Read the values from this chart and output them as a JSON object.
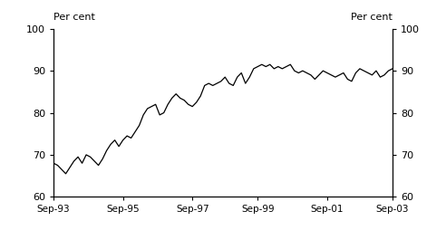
{
  "ylabel_left": "Per cent",
  "ylabel_right": "Per cent",
  "ylim": [
    60,
    100
  ],
  "yticks": [
    60,
    70,
    80,
    90,
    100
  ],
  "xtick_labels": [
    "Sep-93",
    "Sep-95",
    "Sep-97",
    "Sep-99",
    "Sep-01",
    "Sep-03"
  ],
  "line_color": "#000000",
  "line_width": 0.9,
  "background_color": "#ffffff",
  "values": [
    68.0,
    67.5,
    66.5,
    65.5,
    67.0,
    68.5,
    69.5,
    68.0,
    70.0,
    69.5,
    68.5,
    67.5,
    69.0,
    71.0,
    72.5,
    73.5,
    72.0,
    73.5,
    74.5,
    74.0,
    75.5,
    77.0,
    79.5,
    81.0,
    81.5,
    82.0,
    79.5,
    80.0,
    82.0,
    83.5,
    84.5,
    83.5,
    83.0,
    82.0,
    81.5,
    82.5,
    84.0,
    86.5,
    87.0,
    86.5,
    87.0,
    87.5,
    88.5,
    87.0,
    86.5,
    88.5,
    89.5,
    87.0,
    88.5,
    90.5,
    91.0,
    91.5,
    91.0,
    91.5,
    90.5,
    91.0,
    90.5,
    91.0,
    91.5,
    90.0,
    89.5,
    90.0,
    89.5,
    89.0,
    88.0,
    89.0,
    90.0,
    89.5,
    89.0,
    88.5,
    89.0,
    89.5,
    88.0,
    87.5,
    89.5,
    90.5,
    90.0,
    89.5,
    89.0,
    90.0,
    88.5,
    89.0,
    90.0,
    90.5
  ]
}
